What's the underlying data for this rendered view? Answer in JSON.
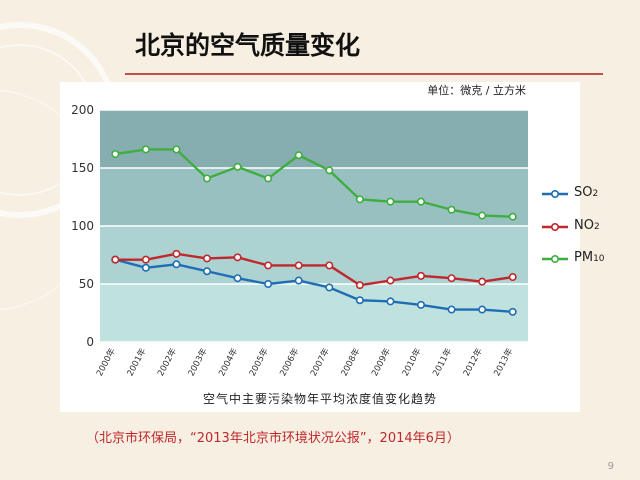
{
  "slide": {
    "title": "北京的空气质量变化",
    "unit": "单位：微克 / 立方米",
    "caption": "空气中主要污染物年平均浓度值变化趋势",
    "source": "（北京市环保局，“2013年北京市环境状况公报”，2014年6月）",
    "page_number": "9",
    "colors": {
      "background": "#f6efe2",
      "title_rule": "#c0504d",
      "source_text": "#c0282d",
      "band_top": "#86adaf",
      "band_mid_top": "#98c0c0",
      "band_mid_low": "#acd3d2",
      "band_bottom": "#bfe2df"
    }
  },
  "chart_data": {
    "type": "line",
    "categories": [
      "2000年",
      "2001年",
      "2002年",
      "2003年",
      "2004年",
      "2005年",
      "2006年",
      "2007年",
      "2008年",
      "2009年",
      "2010年",
      "2011年",
      "2012年",
      "2013年"
    ],
    "ylim": [
      0,
      200
    ],
    "yticks": [
      "0",
      "50",
      "100",
      "150",
      "200"
    ],
    "grid": true,
    "legend_position": "right",
    "series": [
      {
        "name": "SO",
        "subscript": "2",
        "color": "#1f6eb5",
        "values": [
          71,
          64,
          67,
          61,
          55,
          50,
          53,
          47,
          36,
          35,
          32,
          28,
          28,
          26
        ]
      },
      {
        "name": "NO",
        "subscript": "2",
        "color": "#c0282d",
        "values": [
          71,
          71,
          76,
          72,
          73,
          66,
          66,
          66,
          49,
          53,
          57,
          55,
          52,
          56
        ]
      },
      {
        "name": "PM",
        "subscript": "10",
        "color": "#3fae3f",
        "values": [
          162,
          166,
          166,
          141,
          151,
          141,
          161,
          148,
          123,
          121,
          121,
          114,
          109,
          108
        ]
      }
    ]
  }
}
